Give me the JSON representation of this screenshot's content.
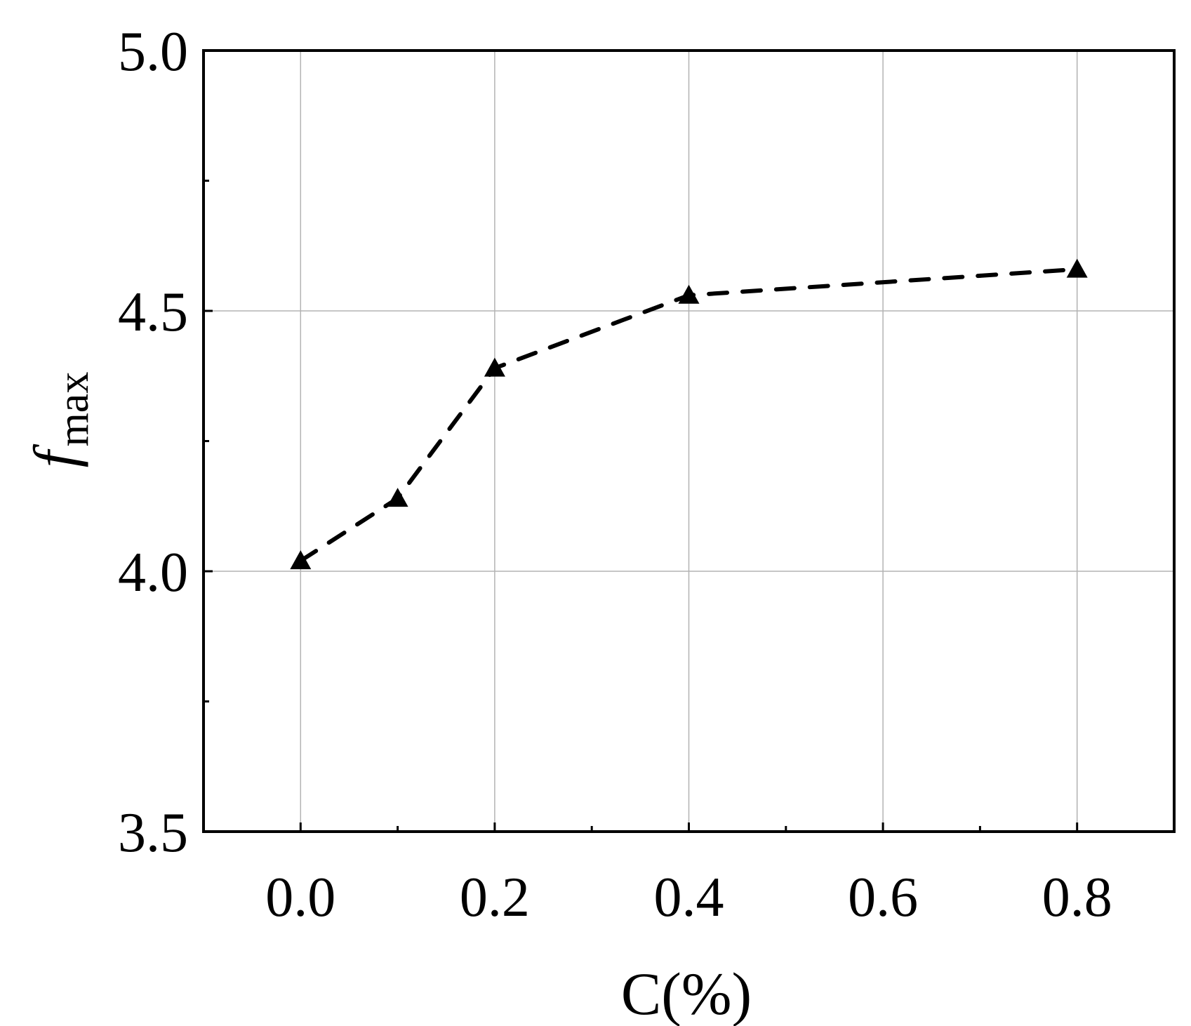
{
  "chart_data": {
    "type": "line",
    "xlabel": "C(%)",
    "ylabel_main": "f",
    "ylabel_sub": "max",
    "xlim": [
      -0.1,
      0.9
    ],
    "ylim": [
      3.5,
      5.0
    ],
    "x_ticks": [
      0.0,
      0.2,
      0.4,
      0.6,
      0.8
    ],
    "x_tick_labels": [
      "0.0",
      "0.2",
      "0.4",
      "0.6",
      "0.8"
    ],
    "x_minor_ticks": [
      0.1,
      0.3,
      0.5,
      0.7
    ],
    "y_ticks": [
      3.5,
      4.0,
      4.5,
      5.0
    ],
    "y_tick_labels": [
      "3.5",
      "4.0",
      "4.5",
      "5.0"
    ],
    "y_minor_ticks": [
      3.75,
      4.25,
      4.75
    ],
    "grid": true,
    "series": [
      {
        "marker": "triangle",
        "line_style": "dashed",
        "color": "#000000",
        "x": [
          0.0,
          0.1,
          0.2,
          0.4,
          0.8
        ],
        "y": [
          4.02,
          4.14,
          4.39,
          4.53,
          4.58
        ]
      }
    ]
  }
}
